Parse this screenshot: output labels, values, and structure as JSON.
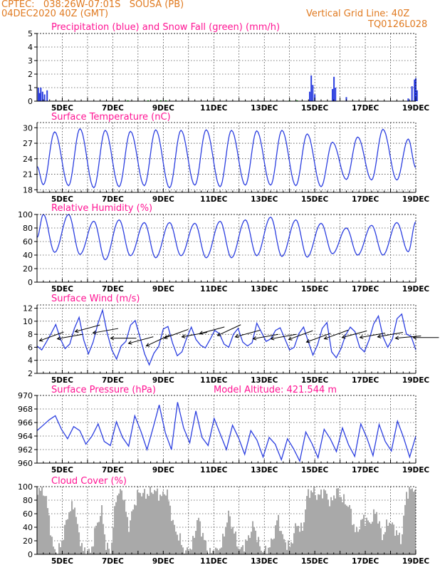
{
  "header": {
    "line1_left": "CPTEC:   038:26W-07:01S   SOUSA (PB)",
    "line2_left": "04DEC2020 40Z (GMT)",
    "line2_right": "Vertical Grid Line: 40Z",
    "line3_right": "TQ0126L028"
  },
  "colors": {
    "header": "#e07a20",
    "title": "#ff1493",
    "line": "#2c3fe0",
    "snow": "#00aa00",
    "cloud": "#a9a9a9",
    "arrow": "#000000"
  },
  "x_tick_labels": [
    "5DEC",
    "7DEC",
    "9DEC",
    "11DEC",
    "13DEC",
    "15DEC",
    "17DEC",
    "19DEC"
  ],
  "chart_data": [
    {
      "id": "precip",
      "type": "bar",
      "title": "Precipitation (blue) and Snow Fall (green) (mm/h)",
      "ylim": [
        0,
        5
      ],
      "yticks": [
        0,
        1,
        2,
        3,
        4,
        5
      ],
      "x_range_days": [
        4,
        19
      ],
      "series": [
        {
          "name": "Precipitation",
          "color": "blue",
          "bars": [
            [
              4.05,
              1.0
            ],
            [
              4.1,
              0.6
            ],
            [
              4.15,
              1.0
            ],
            [
              4.22,
              0.7
            ],
            [
              4.3,
              0.5
            ],
            [
              4.4,
              0.8
            ],
            [
              14.8,
              0.7
            ],
            [
              14.86,
              1.9
            ],
            [
              14.92,
              1.2
            ],
            [
              15.0,
              0.5
            ],
            [
              15.7,
              0.9
            ],
            [
              15.76,
              1.8
            ],
            [
              15.82,
              1.0
            ],
            [
              16.25,
              0.3
            ],
            [
              18.7,
              0.2
            ],
            [
              18.85,
              1.1
            ],
            [
              18.95,
              1.6
            ],
            [
              19.0,
              1.7
            ],
            [
              19.05,
              0.8
            ]
          ]
        },
        {
          "name": "Snow Fall",
          "color": "green",
          "bars": [
            [
              7.6,
              0.06
            ],
            [
              8.4,
              0.06
            ],
            [
              8.9,
              0.06
            ],
            [
              9.1,
              0.06
            ],
            [
              14.0,
              0.06
            ],
            [
              14.3,
              0.06
            ]
          ]
        }
      ]
    },
    {
      "id": "temp",
      "type": "line",
      "title": "Surface Temperature (nC)",
      "ylim": [
        17.5,
        31
      ],
      "yticks": [
        18,
        21,
        24,
        27,
        30
      ],
      "x_range_days": [
        4,
        19
      ],
      "daily_max": [
        29.2,
        29.8,
        29.5,
        29.3,
        29.6,
        29.5,
        29.6,
        29.5,
        29.4,
        29.5,
        28.8,
        27.2,
        28.2,
        29.7,
        27.8
      ],
      "daily_min": [
        19.0,
        18.8,
        18.4,
        18.6,
        18.8,
        18.4,
        18.9,
        18.6,
        18.9,
        18.9,
        18.8,
        18.6,
        20.0,
        19.9,
        19.9
      ],
      "start_value": 22.5,
      "end_value": 22.3
    },
    {
      "id": "rh",
      "type": "line",
      "title": "Relative Humidity (%)",
      "ylim": [
        0,
        100
      ],
      "yticks": [
        0,
        20,
        40,
        60,
        80,
        100
      ],
      "x_range_days": [
        4,
        19
      ],
      "daily_max": [
        100,
        100,
        90,
        92,
        88,
        88,
        87,
        90,
        92,
        96,
        92,
        87,
        80,
        84,
        88
      ],
      "daily_min": [
        44,
        41,
        33,
        39,
        36,
        39,
        36,
        36,
        39,
        38,
        37,
        42,
        40,
        40,
        45
      ],
      "start_value": 66,
      "end_value": 89
    },
    {
      "id": "wind",
      "type": "line",
      "title": "Surface Wind (m/s)",
      "ylim": [
        2,
        12.5
      ],
      "yticks": [
        2,
        4,
        6,
        8,
        10,
        12
      ],
      "x_range_days": [
        4,
        19
      ],
      "speed": [
        6.2,
        5.6,
        6.8,
        8.1,
        9.5,
        7.3,
        5.8,
        6.5,
        8.9,
        10.6,
        7.1,
        5.0,
        6.8,
        9.6,
        11.7,
        8.2,
        5.6,
        4.2,
        6.2,
        6.9,
        9.4,
        10.1,
        7.6,
        5.0,
        3.3,
        5.1,
        6.1,
        8.8,
        9.2,
        6.6,
        4.7,
        5.3,
        7.4,
        9.1,
        7.2,
        6.3,
        5.9,
        7.2,
        8.6,
        8.1,
        6.5,
        6.0,
        8.0,
        8.9,
        6.8,
        6.2,
        6.7,
        9.7,
        8.3,
        6.9,
        7.3,
        8.6,
        9.0,
        7.3,
        5.6,
        6.0,
        8.1,
        9.1,
        6.9,
        4.8,
        6.4,
        8.9,
        9.8,
        5.3,
        4.4,
        5.8,
        7.9,
        9.1,
        8.4,
        6.0,
        5.3,
        7.1,
        9.6,
        10.8,
        7.6,
        6.0,
        7.3,
        10.4,
        11.1,
        8.0,
        7.7,
        5.6
      ],
      "arrow_speeds": [
        7,
        7.3,
        8.4,
        8.2,
        7.4,
        6.6,
        6.2,
        7.4,
        7.6,
        8.1,
        7.8,
        7.6,
        7.3,
        7.3,
        7.2,
        6.8,
        7.3,
        7.5,
        7.5,
        7.6,
        7.4,
        7.5
      ],
      "arrow_angles_deg": [
        -20,
        -10,
        -15,
        -10,
        0,
        -15,
        -25,
        -20,
        -10,
        -15,
        -25,
        -15,
        -10,
        -10,
        -20,
        -20,
        -20,
        -15,
        -10,
        -10,
        -5,
        0
      ]
    },
    {
      "id": "pressure",
      "type": "line",
      "title": "Surface Pressure (hPa)",
      "annotation": "Model Altitude: 421.544 m",
      "ylim": [
        960,
        970
      ],
      "yticks": [
        960,
        962,
        964,
        966,
        968,
        970
      ],
      "x_range_days": [
        4,
        19
      ],
      "values": [
        964.8,
        965.6,
        966.4,
        967.0,
        965.0,
        963.6,
        965.4,
        964.8,
        962.8,
        964.0,
        965.8,
        963.2,
        962.6,
        966.1,
        963.8,
        962.5,
        967.0,
        964.7,
        962.0,
        965.2,
        968.6,
        964.5,
        962.0,
        969.0,
        965.2,
        963.0,
        967.7,
        963.8,
        962.6,
        966.6,
        964.3,
        962.0,
        965.6,
        963.7,
        961.3,
        964.8,
        963.4,
        960.9,
        963.8,
        962.8,
        960.5,
        963.6,
        962.1,
        960.3,
        964.6,
        962.9,
        960.8,
        965.0,
        963.6,
        961.7,
        965.2,
        962.7,
        961.0,
        965.8,
        963.7,
        961.1,
        965.7,
        963.2,
        961.8,
        966.2,
        963.8,
        960.9,
        964.0
      ]
    },
    {
      "id": "cloud",
      "type": "bar",
      "title": "Cloud Cover (%)",
      "ylim": [
        0,
        100
      ],
      "yticks": [
        0,
        20,
        40,
        60,
        80,
        100
      ],
      "x_range_days": [
        4,
        19
      ],
      "anchors": [
        [
          4.0,
          97
        ],
        [
          4.3,
          90
        ],
        [
          4.45,
          55
        ],
        [
          4.6,
          10
        ],
        [
          4.8,
          2
        ],
        [
          5.0,
          25
        ],
        [
          5.2,
          60
        ],
        [
          5.45,
          75
        ],
        [
          5.6,
          35
        ],
        [
          5.8,
          5
        ],
        [
          6.1,
          2
        ],
        [
          6.3,
          40
        ],
        [
          6.55,
          65
        ],
        [
          6.7,
          12
        ],
        [
          6.9,
          4
        ],
        [
          7.1,
          85
        ],
        [
          7.35,
          95
        ],
        [
          7.6,
          40
        ],
        [
          7.8,
          70
        ],
        [
          8.0,
          92
        ],
        [
          8.3,
          88
        ],
        [
          8.6,
          95
        ],
        [
          8.9,
          85
        ],
        [
          9.1,
          95
        ],
        [
          9.4,
          40
        ],
        [
          9.6,
          25
        ],
        [
          9.85,
          2
        ],
        [
          10.1,
          10
        ],
        [
          10.35,
          55
        ],
        [
          10.6,
          20
        ],
        [
          10.8,
          2
        ],
        [
          11.1,
          5
        ],
        [
          11.3,
          15
        ],
        [
          11.55,
          60
        ],
        [
          11.8,
          30
        ],
        [
          12.0,
          5
        ],
        [
          12.3,
          20
        ],
        [
          12.55,
          45
        ],
        [
          12.8,
          10
        ],
        [
          13.0,
          2
        ],
        [
          13.3,
          20
        ],
        [
          13.5,
          55
        ],
        [
          13.75,
          20
        ],
        [
          14.0,
          10
        ],
        [
          14.25,
          45
        ],
        [
          14.5,
          35
        ],
        [
          14.65,
          85
        ],
        [
          14.85,
          95
        ],
        [
          15.1,
          85
        ],
        [
          15.35,
          95
        ],
        [
          15.6,
          75
        ],
        [
          15.85,
          95
        ],
        [
          16.1,
          80
        ],
        [
          16.35,
          70
        ],
        [
          16.6,
          30
        ],
        [
          16.9,
          55
        ],
        [
          17.15,
          45
        ],
        [
          17.4,
          65
        ],
        [
          17.65,
          25
        ],
        [
          17.9,
          50
        ],
        [
          18.1,
          40
        ],
        [
          18.4,
          20
        ],
        [
          18.6,
          90
        ],
        [
          18.85,
          97
        ],
        [
          19.0,
          98
        ]
      ]
    }
  ]
}
